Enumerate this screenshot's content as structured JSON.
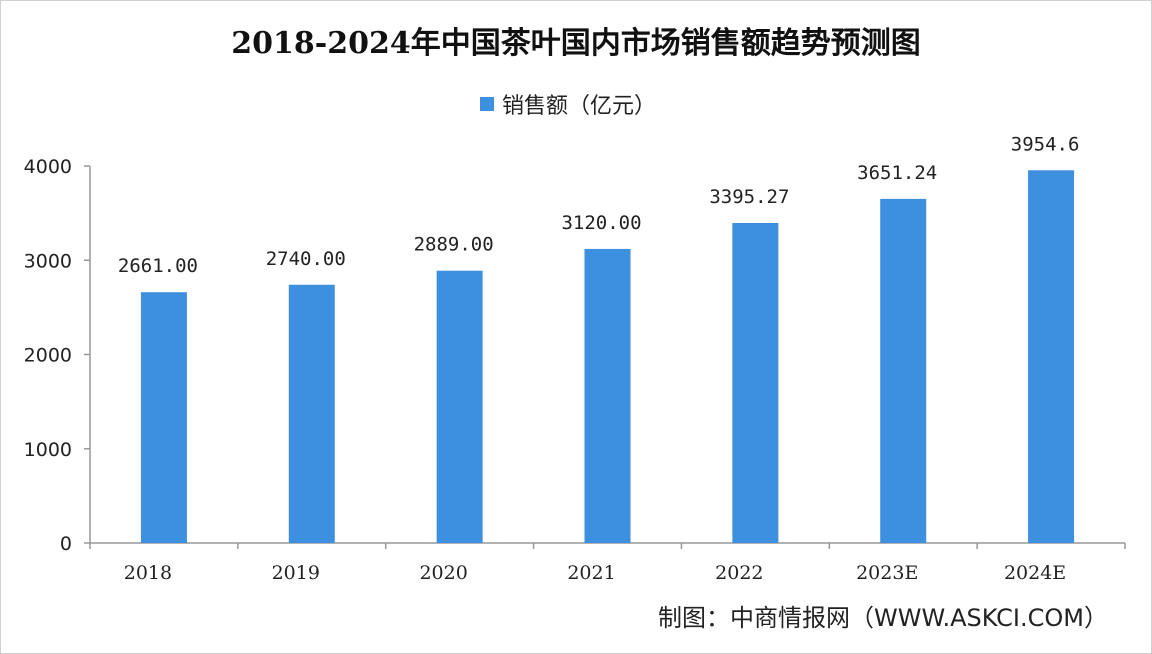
{
  "title": "2018-2024年中国茶叶国内市场销售额趋势预测图",
  "legend_label": "销售额（亿元）",
  "source": "制图：中商情报网（WWW.ASKCI.COM）",
  "chart_data": {
    "type": "bar",
    "title": "2018-2024年中国茶叶国内市场销售额趋势预测图",
    "xlabel": "",
    "ylabel": "",
    "categories": [
      "2018",
      "2019",
      "2020",
      "2021",
      "2022",
      "2023E",
      "2024E"
    ],
    "series": [
      {
        "name": "销售额（亿元）",
        "values": [
          2661.0,
          2740.0,
          2889.0,
          3120.0,
          3395.27,
          3651.24,
          3954.6
        ],
        "labels": [
          "2661.00",
          "2740.00",
          "2889.00",
          "3120.00",
          "3395.27",
          "3651.24",
          "3954.6"
        ]
      }
    ],
    "ylim": [
      0,
      4000
    ],
    "yticks": [
      0,
      1000,
      2000,
      3000,
      4000
    ],
    "grid": false,
    "legend_position": "top",
    "bar_color": "#3d8fe0"
  }
}
